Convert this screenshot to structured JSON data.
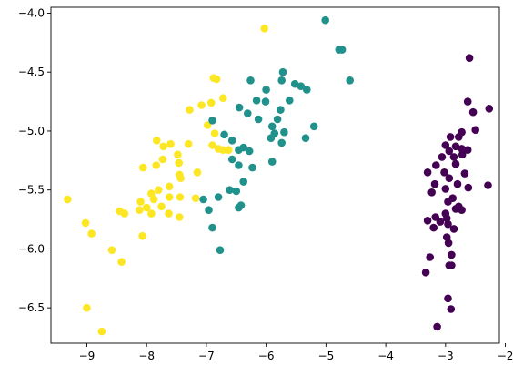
{
  "chart_data": {
    "type": "scatter",
    "title": "",
    "xlabel": "",
    "ylabel": "",
    "xlim": [
      -9.6,
      -2.1
    ],
    "ylim": [
      -6.8,
      -3.95
    ],
    "x_ticks": [
      -9,
      -8,
      -7,
      -6,
      -5,
      -4,
      -3,
      -2
    ],
    "y_ticks": [
      -4.0,
      -4.5,
      -5.0,
      -5.5,
      -6.0,
      -6.5
    ],
    "x_tick_labels": [
      "−9",
      "−8",
      "−7",
      "−6",
      "−5",
      "−4",
      "−3",
      "−2"
    ],
    "y_tick_labels": [
      "−4.0",
      "−4.5",
      "−5.0",
      "−5.5",
      "−6.0",
      "−6.5"
    ],
    "grid": false,
    "series": [
      {
        "color": "#fde725",
        "points": [
          [
            -6.03,
            -4.13
          ],
          [
            -6.88,
            -4.55
          ],
          [
            -6.83,
            -4.56
          ],
          [
            -6.72,
            -4.72
          ],
          [
            -6.92,
            -4.76
          ],
          [
            -7.08,
            -4.78
          ],
          [
            -7.28,
            -4.82
          ],
          [
            -6.98,
            -4.95
          ],
          [
            -6.86,
            -5.02
          ],
          [
            -6.9,
            -5.12
          ],
          [
            -6.8,
            -5.15
          ],
          [
            -6.72,
            -5.16
          ],
          [
            -6.63,
            -5.16
          ],
          [
            -7.83,
            -5.08
          ],
          [
            -7.6,
            -5.11
          ],
          [
            -7.3,
            -5.11
          ],
          [
            -7.48,
            -5.2
          ],
          [
            -7.72,
            -5.13
          ],
          [
            -7.73,
            -5.24
          ],
          [
            -7.46,
            -5.27
          ],
          [
            -7.84,
            -5.29
          ],
          [
            -8.06,
            -5.31
          ],
          [
            -7.15,
            -5.35
          ],
          [
            -7.45,
            -5.37
          ],
          [
            -7.43,
            -5.4
          ],
          [
            -7.62,
            -5.47
          ],
          [
            -7.8,
            -5.5
          ],
          [
            -7.92,
            -5.53
          ],
          [
            -7.62,
            -5.56
          ],
          [
            -7.44,
            -5.56
          ],
          [
            -7.18,
            -5.57
          ],
          [
            -7.88,
            -5.58
          ],
          [
            -8.1,
            -5.6
          ],
          [
            -8.0,
            -5.65
          ],
          [
            -7.75,
            -5.64
          ],
          [
            -8.12,
            -5.67
          ],
          [
            -8.45,
            -5.68
          ],
          [
            -8.37,
            -5.7
          ],
          [
            -7.92,
            -5.7
          ],
          [
            -7.63,
            -5.7
          ],
          [
            -7.45,
            -5.73
          ],
          [
            -8.07,
            -5.89
          ],
          [
            -9.32,
            -5.58
          ],
          [
            -9.02,
            -5.78
          ],
          [
            -8.92,
            -5.87
          ],
          [
            -8.58,
            -6.01
          ],
          [
            -8.42,
            -6.11
          ],
          [
            -9.0,
            -6.5
          ],
          [
            -8.75,
            -6.7
          ]
        ]
      },
      {
        "color": "#21918c",
        "points": [
          [
            -5.01,
            -4.06
          ],
          [
            -4.78,
            -4.31
          ],
          [
            -4.73,
            -4.31
          ],
          [
            -4.6,
            -4.57
          ],
          [
            -5.72,
            -4.5
          ],
          [
            -5.74,
            -4.57
          ],
          [
            -5.52,
            -4.6
          ],
          [
            -5.42,
            -4.62
          ],
          [
            -5.32,
            -4.65
          ],
          [
            -6.26,
            -4.57
          ],
          [
            -6.0,
            -4.65
          ],
          [
            -6.16,
            -4.74
          ],
          [
            -6.01,
            -4.75
          ],
          [
            -5.76,
            -4.82
          ],
          [
            -5.61,
            -4.74
          ],
          [
            -5.81,
            -4.9
          ],
          [
            -6.13,
            -4.9
          ],
          [
            -6.31,
            -4.85
          ],
          [
            -6.45,
            -4.8
          ],
          [
            -5.9,
            -4.96
          ],
          [
            -5.86,
            -5.02
          ],
          [
            -5.7,
            -5.01
          ],
          [
            -5.74,
            -5.1
          ],
          [
            -5.92,
            -5.06
          ],
          [
            -5.2,
            -4.96
          ],
          [
            -5.34,
            -5.06
          ],
          [
            -6.9,
            -4.91
          ],
          [
            -6.7,
            -5.03
          ],
          [
            -6.57,
            -5.08
          ],
          [
            -6.38,
            -5.14
          ],
          [
            -6.46,
            -5.16
          ],
          [
            -6.28,
            -5.17
          ],
          [
            -6.57,
            -5.24
          ],
          [
            -6.46,
            -5.29
          ],
          [
            -6.23,
            -5.31
          ],
          [
            -5.9,
            -5.26
          ],
          [
            -6.38,
            -5.43
          ],
          [
            -6.5,
            -5.51
          ],
          [
            -6.61,
            -5.5
          ],
          [
            -6.8,
            -5.56
          ],
          [
            -6.42,
            -5.63
          ],
          [
            -6.46,
            -5.65
          ],
          [
            -6.96,
            -5.67
          ],
          [
            -7.05,
            -5.58
          ],
          [
            -6.9,
            -5.82
          ],
          [
            -6.77,
            -6.01
          ]
        ]
      },
      {
        "color": "#440154",
        "points": [
          [
            -2.6,
            -4.38
          ],
          [
            -2.63,
            -4.75
          ],
          [
            -2.54,
            -4.84
          ],
          [
            -2.27,
            -4.81
          ],
          [
            -2.73,
            -5.01
          ],
          [
            -2.92,
            -5.05
          ],
          [
            -2.78,
            -5.05
          ],
          [
            -2.83,
            -5.13
          ],
          [
            -2.73,
            -5.15
          ],
          [
            -2.94,
            -5.17
          ],
          [
            -2.63,
            -5.16
          ],
          [
            -3.0,
            -5.12
          ],
          [
            -3.06,
            -5.22
          ],
          [
            -2.86,
            -5.22
          ],
          [
            -2.72,
            -5.2
          ],
          [
            -2.83,
            -5.28
          ],
          [
            -2.5,
            -4.99
          ],
          [
            -3.16,
            -5.29
          ],
          [
            -3.3,
            -5.35
          ],
          [
            -3.18,
            -5.45
          ],
          [
            -3.02,
            -5.35
          ],
          [
            -2.94,
            -5.4
          ],
          [
            -2.68,
            -5.36
          ],
          [
            -2.8,
            -5.45
          ],
          [
            -2.62,
            -5.48
          ],
          [
            -3.0,
            -5.49
          ],
          [
            -3.23,
            -5.52
          ],
          [
            -2.88,
            -5.57
          ],
          [
            -2.96,
            -5.6
          ],
          [
            -2.78,
            -5.64
          ],
          [
            -2.73,
            -5.67
          ],
          [
            -2.83,
            -5.66
          ],
          [
            -2.29,
            -5.46
          ],
          [
            -3.0,
            -5.7
          ],
          [
            -3.17,
            -5.73
          ],
          [
            -3.09,
            -5.77
          ],
          [
            -2.98,
            -5.74
          ],
          [
            -3.3,
            -5.76
          ],
          [
            -3.2,
            -5.82
          ],
          [
            -2.96,
            -5.79
          ],
          [
            -2.86,
            -5.83
          ],
          [
            -2.98,
            -5.9
          ],
          [
            -2.95,
            -5.95
          ],
          [
            -2.9,
            -6.05
          ],
          [
            -3.26,
            -6.07
          ],
          [
            -2.94,
            -6.14
          ],
          [
            -2.9,
            -6.14
          ],
          [
            -3.33,
            -6.2
          ],
          [
            -2.96,
            -6.42
          ],
          [
            -2.91,
            -6.51
          ],
          [
            -3.14,
            -6.66
          ]
        ]
      }
    ]
  }
}
